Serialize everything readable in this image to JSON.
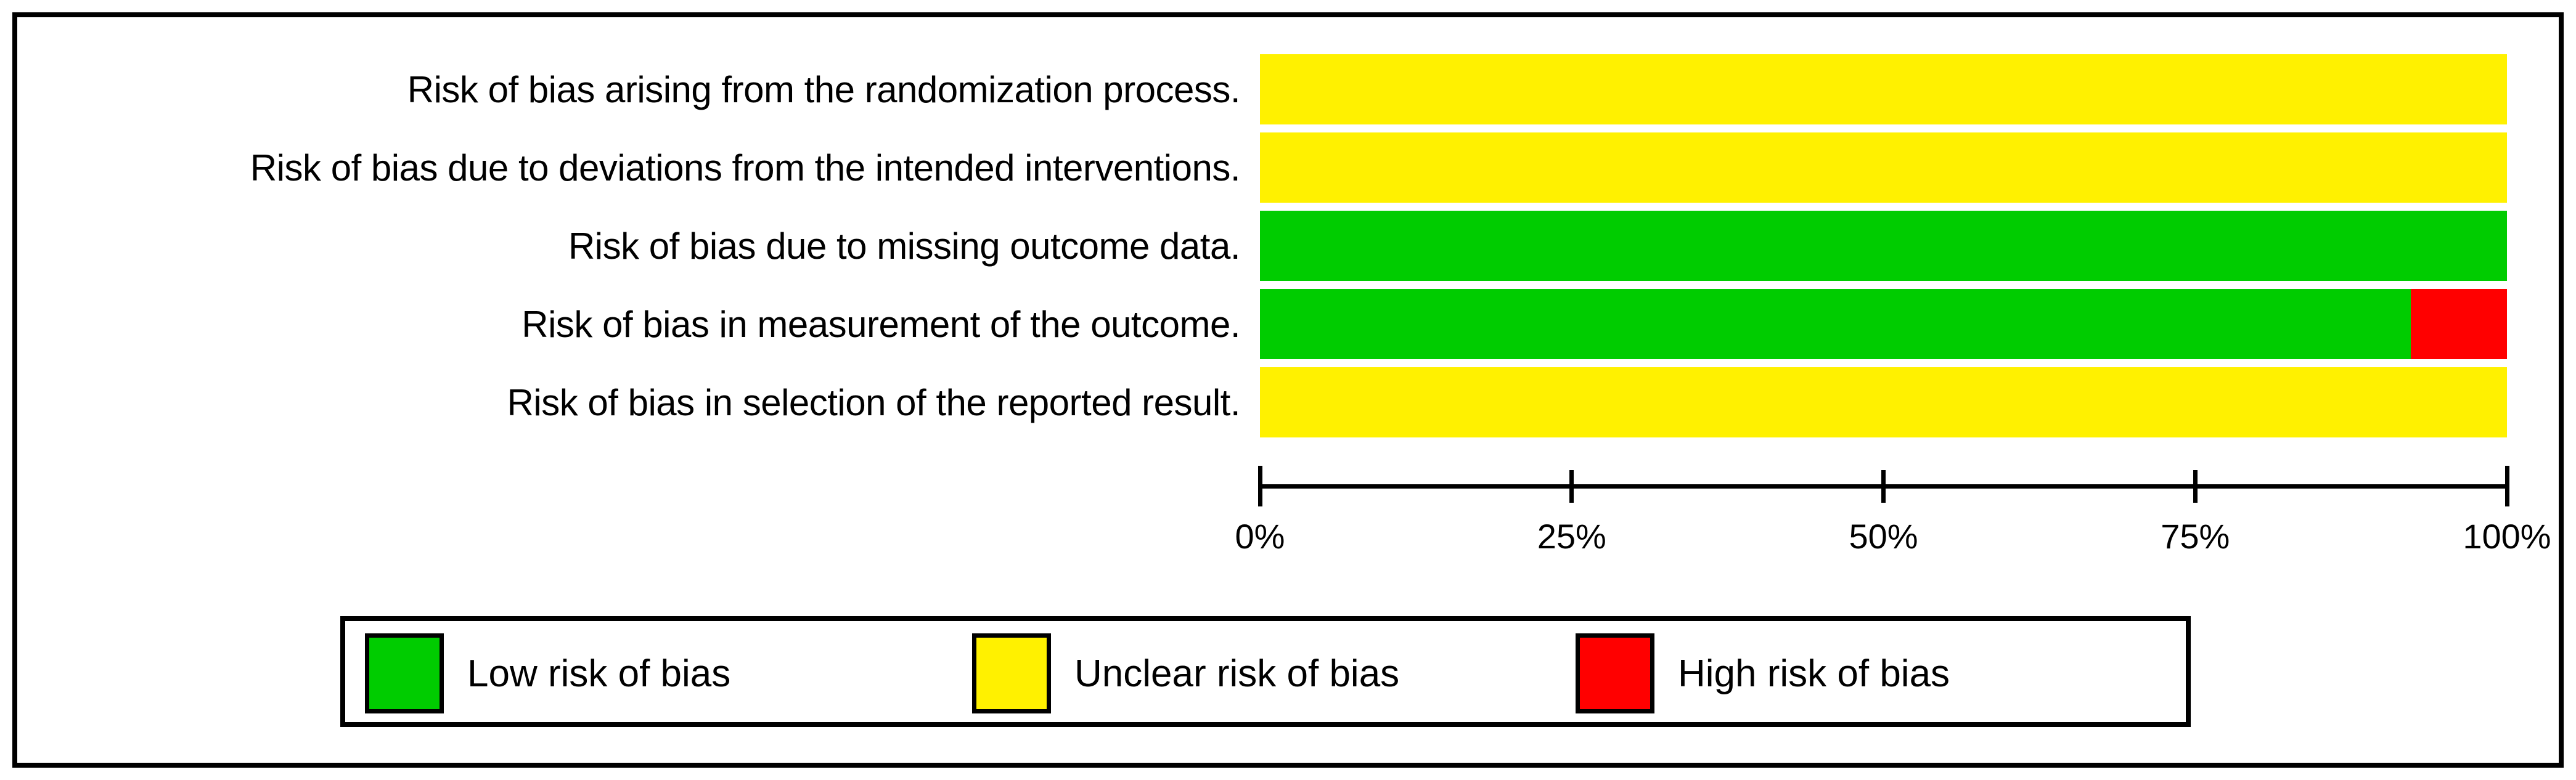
{
  "colors": {
    "low": "#00cc00",
    "unclear": "#fff100",
    "high": "#ff0000",
    "frame": "#000000"
  },
  "chart_data": {
    "type": "bar",
    "orientation": "horizontal",
    "stacked": true,
    "title": "",
    "xlabel": "",
    "ylabel": "",
    "categories": [
      "Risk of bias arising from the randomization process.",
      "Risk of bias due to deviations from the intended interventions.",
      "Risk of bias due to missing outcome data.",
      "Risk of bias in measurement of the outcome.",
      "Risk of bias in selection of the reported result."
    ],
    "series": [
      {
        "name": "Low risk of bias",
        "color": "#00cc00",
        "values": [
          0,
          0,
          100,
          92.3,
          0
        ]
      },
      {
        "name": "Unclear risk of bias",
        "color": "#fff100",
        "values": [
          100,
          100,
          0,
          0,
          100
        ]
      },
      {
        "name": "High risk of bias",
        "color": "#ff0000",
        "values": [
          0,
          0,
          0,
          7.7,
          0
        ]
      }
    ],
    "x_axis": {
      "range": [
        0,
        100
      ],
      "unit": "percent",
      "tick_labels": [
        "0%",
        "25%",
        "50%",
        "75%",
        "100%"
      ],
      "grid": false
    },
    "legend": {
      "position": "bottom",
      "entries": [
        {
          "label": "Low risk of bias",
          "color": "#00cc00"
        },
        {
          "label": "Unclear risk of bias",
          "color": "#fff100"
        },
        {
          "label": "High risk of bias",
          "color": "#ff0000"
        }
      ]
    }
  }
}
